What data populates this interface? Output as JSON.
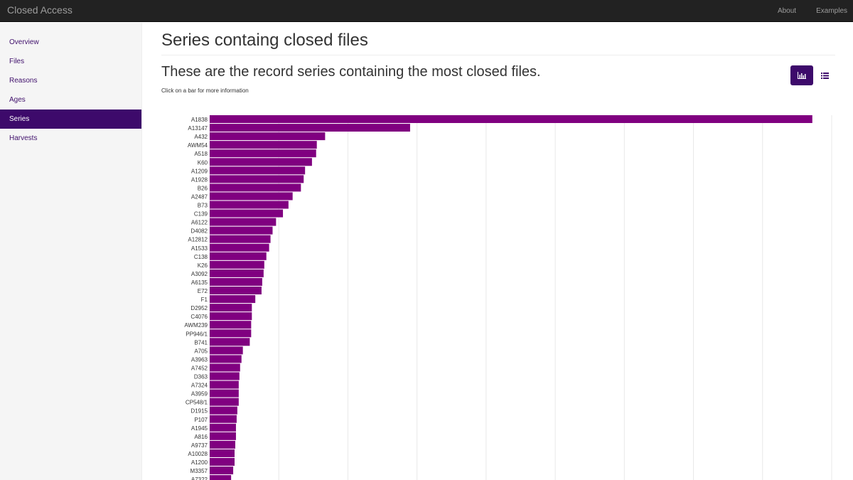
{
  "navbar": {
    "brand": "Closed Access",
    "links": [
      "About",
      "Examples"
    ]
  },
  "sidebar": {
    "items": [
      "Overview",
      "Files",
      "Reasons",
      "Ages",
      "Series",
      "Harvests"
    ],
    "active": "Series"
  },
  "main": {
    "page_title": "Series containg closed files",
    "subtitle": "These are the record series containing the most closed files.",
    "hint": "Click on a bar for more information"
  },
  "view_buttons": {
    "chart_icon": "bar-chart-icon",
    "list_icon": "list-icon",
    "active": "chart"
  },
  "colors": {
    "bar": "#800080",
    "accent": "#3d0a6b",
    "navbar": "#222222"
  },
  "chart_data": {
    "type": "bar",
    "orientation": "horizontal",
    "categories": [
      "A1838",
      "A13147",
      "A432",
      "AWM54",
      "A518",
      "K60",
      "A1209",
      "A1928",
      "B26",
      "A2487",
      "B73",
      "C139",
      "A6122",
      "D4082",
      "A12812",
      "A1533",
      "C138",
      "K26",
      "A3092",
      "A6135",
      "E72",
      "F1",
      "D2952",
      "C4076",
      "AWM239",
      "PP946/1",
      "B741",
      "A705",
      "A3963",
      "A7452",
      "D363",
      "A7324",
      "A3959",
      "CP548/1",
      "D1915",
      "P107",
      "A1945",
      "A816",
      "A9737",
      "A10028",
      "A1200",
      "M3357",
      "A7322"
    ],
    "values": [
      8720,
      2900,
      1670,
      1550,
      1540,
      1480,
      1380,
      1360,
      1320,
      1200,
      1140,
      1060,
      960,
      910,
      880,
      860,
      820,
      790,
      780,
      760,
      750,
      660,
      610,
      610,
      600,
      600,
      580,
      480,
      460,
      440,
      430,
      420,
      420,
      420,
      400,
      390,
      380,
      380,
      370,
      360,
      360,
      340,
      310
    ],
    "xlim": [
      0,
      9000
    ],
    "grid": true
  }
}
